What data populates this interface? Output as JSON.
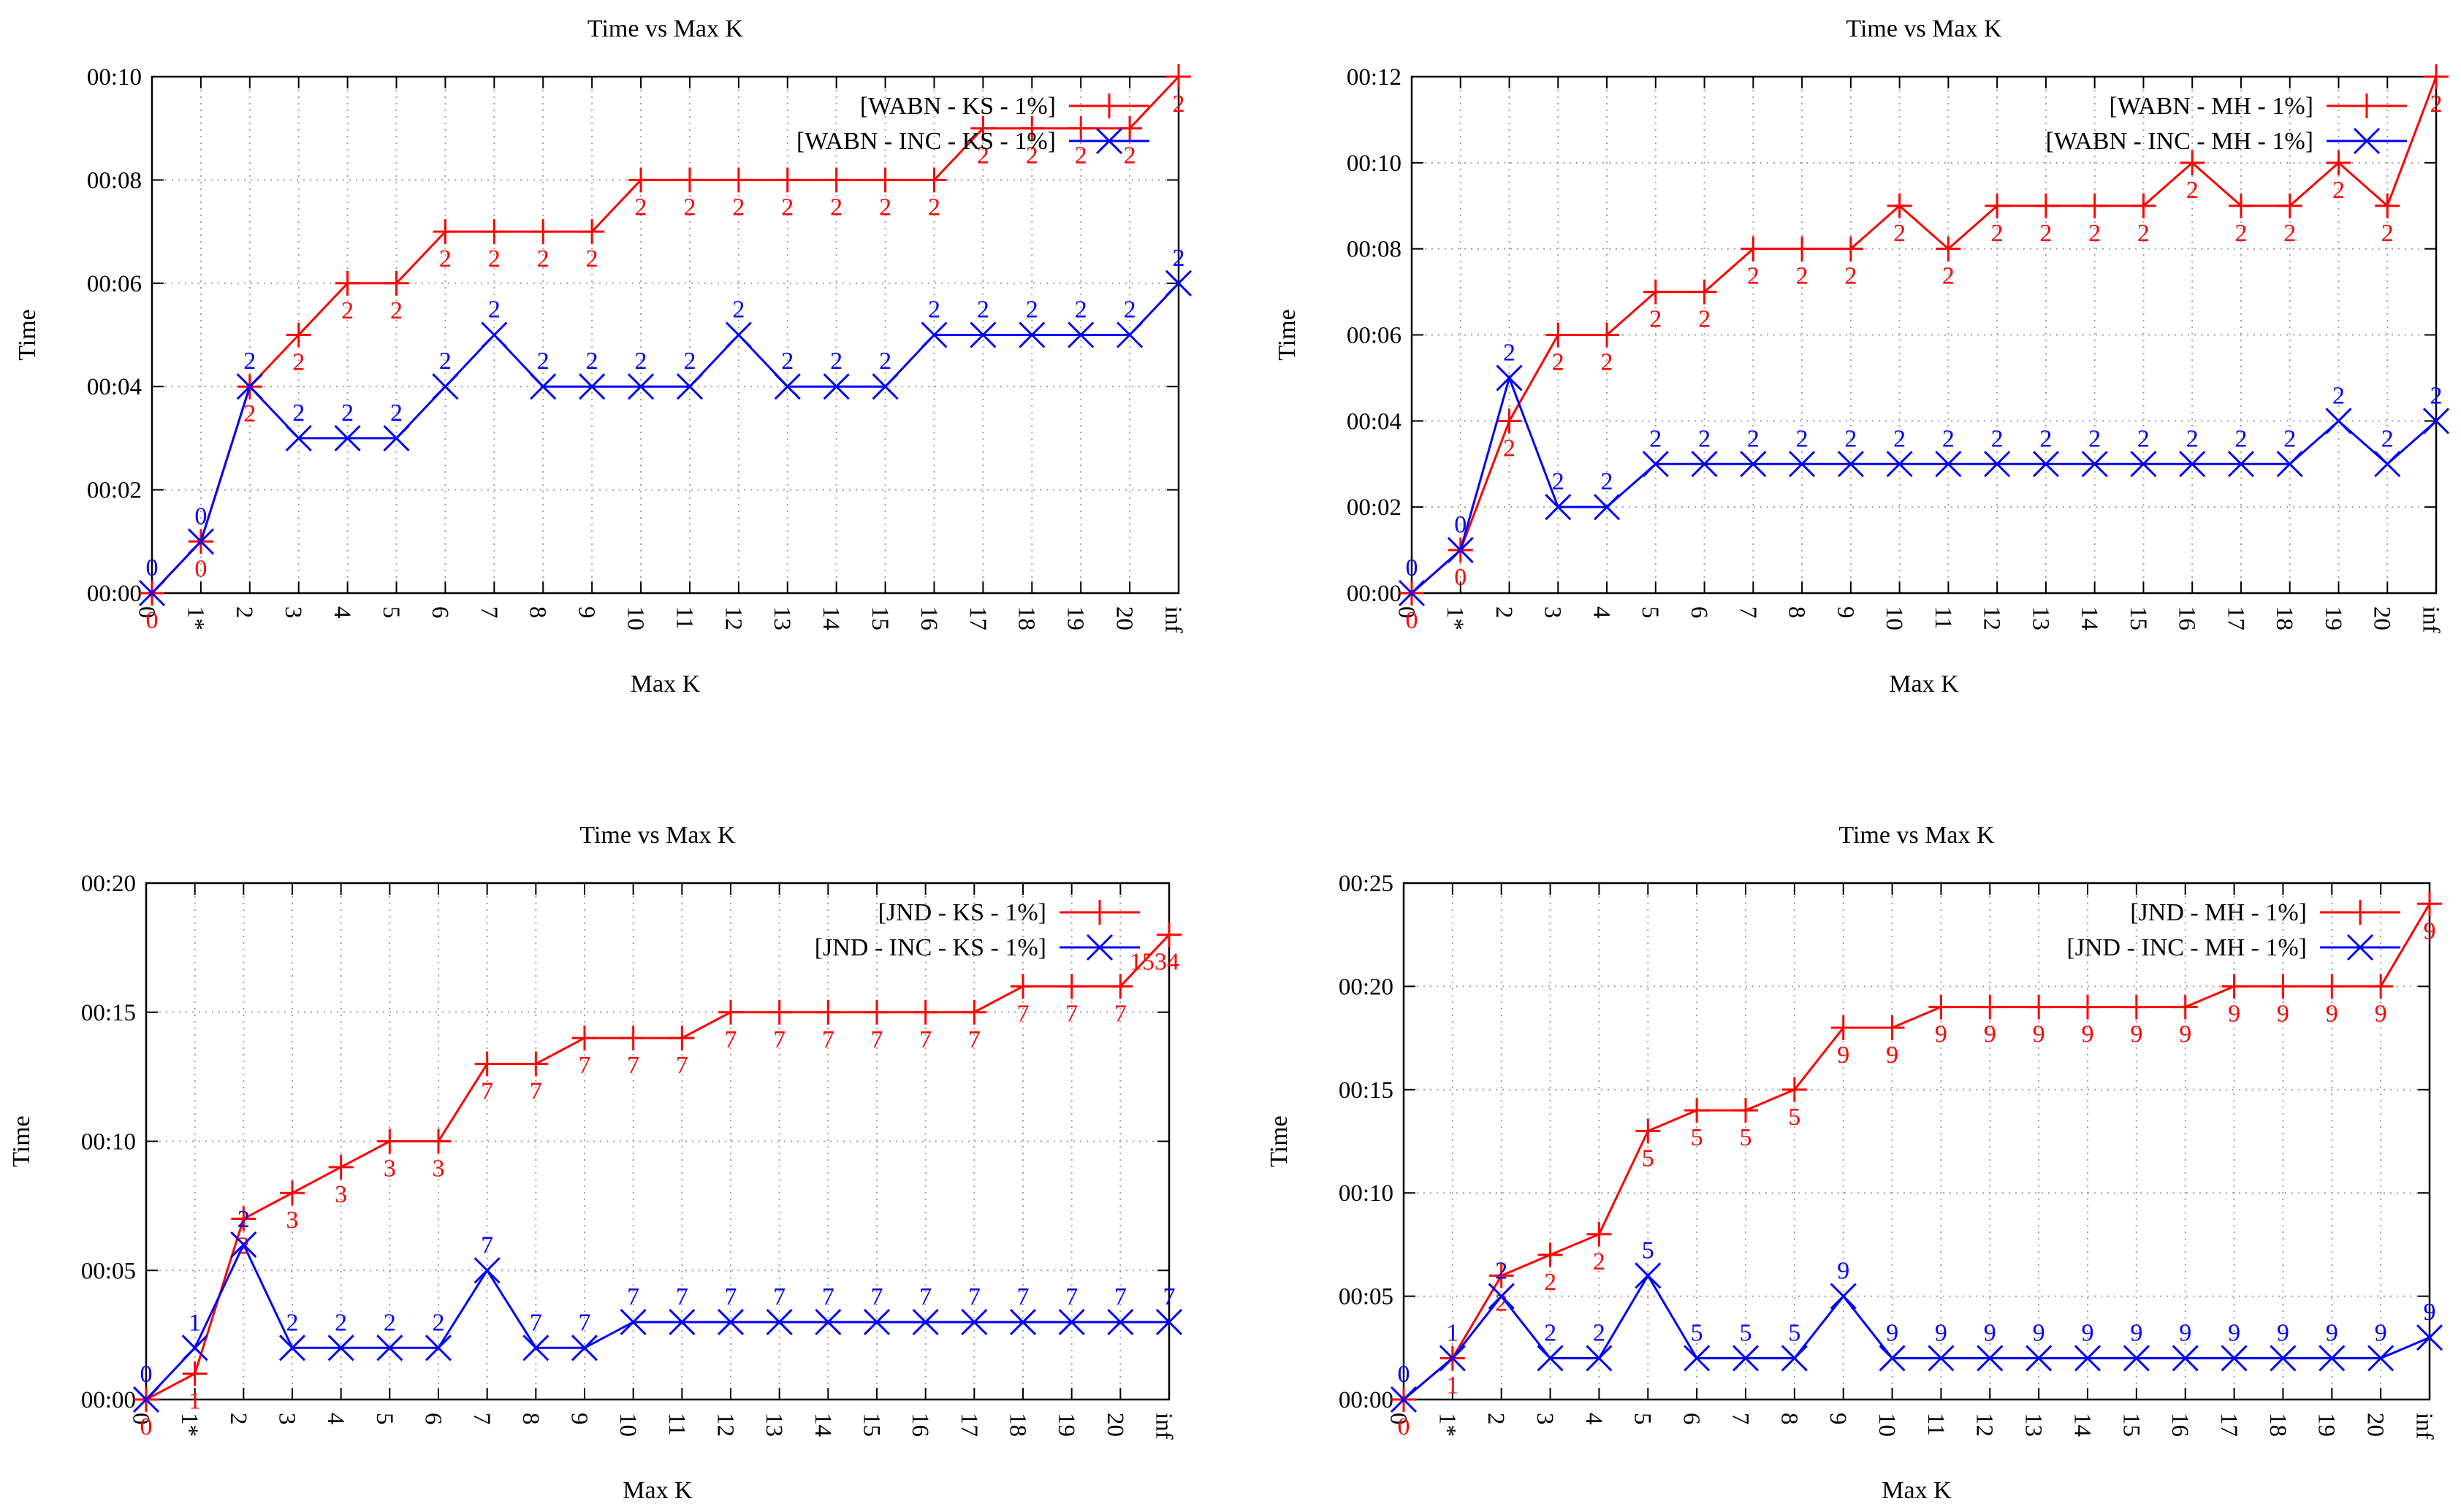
{
  "chart_data": [
    {
      "type": "line",
      "title": "Time vs Max K",
      "xlabel": "Max K",
      "ylabel": "Time",
      "categories": [
        "0",
        "1*",
        "2",
        "3",
        "4",
        "5",
        "6",
        "7",
        "8",
        "9",
        "10",
        "11",
        "12",
        "13",
        "14",
        "15",
        "16",
        "17",
        "18",
        "19",
        "20",
        "inf"
      ],
      "ylim": [
        0,
        10
      ],
      "yticks": [
        "00:00",
        "00:02",
        "00:04",
        "00:06",
        "00:08",
        "00:10"
      ],
      "legend_position": "top-right",
      "series": [
        {
          "name": "[WABN - KS - 1%]",
          "color": "#ff0000",
          "marker": "plus",
          "label_pos": "below",
          "values": [
            0,
            1,
            4,
            5,
            6,
            6,
            7,
            7,
            7,
            7,
            8,
            8,
            8,
            8,
            8,
            8,
            8,
            9,
            9,
            9,
            9,
            10
          ],
          "labels": [
            "0",
            "0",
            "2",
            "2",
            "2",
            "2",
            "2",
            "2",
            "2",
            "2",
            "2",
            "2",
            "2",
            "2",
            "2",
            "2",
            "2",
            "2",
            "2",
            "2",
            "2",
            "2"
          ]
        },
        {
          "name": "[WABN - INC - KS - 1%]",
          "color": "#0000ff",
          "marker": "cross",
          "label_pos": "above",
          "values": [
            0,
            1,
            4,
            3,
            3,
            3,
            4,
            5,
            4,
            4,
            4,
            4,
            5,
            4,
            4,
            4,
            5,
            5,
            5,
            5,
            5,
            6
          ],
          "labels": [
            "0",
            "0",
            "2",
            "2",
            "2",
            "2",
            "2",
            "2",
            "2",
            "2",
            "2",
            "2",
            "2",
            "2",
            "2",
            "2",
            "2",
            "2",
            "2",
            "2",
            "2",
            "2"
          ]
        }
      ]
    },
    {
      "type": "line",
      "title": "Time vs Max K",
      "xlabel": "Max K",
      "ylabel": "Time",
      "categories": [
        "0",
        "1*",
        "2",
        "3",
        "4",
        "5",
        "6",
        "7",
        "8",
        "9",
        "10",
        "11",
        "12",
        "13",
        "14",
        "15",
        "16",
        "17",
        "18",
        "19",
        "20",
        "inf"
      ],
      "ylim": [
        0,
        12
      ],
      "yticks": [
        "00:00",
        "00:02",
        "00:04",
        "00:06",
        "00:08",
        "00:10",
        "00:12"
      ],
      "legend_position": "top-right",
      "series": [
        {
          "name": "[WABN - MH - 1%]",
          "color": "#ff0000",
          "marker": "plus",
          "label_pos": "below",
          "values": [
            0,
            1,
            4,
            6,
            6,
            7,
            7,
            8,
            8,
            8,
            9,
            8,
            9,
            9,
            9,
            9,
            10,
            9,
            9,
            10,
            9,
            12
          ],
          "labels": [
            "0",
            "0",
            "2",
            "2",
            "2",
            "2",
            "2",
            "2",
            "2",
            "2",
            "2",
            "2",
            "2",
            "2",
            "2",
            "2",
            "2",
            "2",
            "2",
            "2",
            "2",
            "2"
          ]
        },
        {
          "name": "[WABN - INC - MH - 1%]",
          "color": "#0000ff",
          "marker": "cross",
          "label_pos": "above",
          "values": [
            0,
            1,
            5,
            2,
            2,
            3,
            3,
            3,
            3,
            3,
            3,
            3,
            3,
            3,
            3,
            3,
            3,
            3,
            3,
            4,
            3,
            4
          ],
          "labels": [
            "0",
            "0",
            "2",
            "2",
            "2",
            "2",
            "2",
            "2",
            "2",
            "2",
            "2",
            "2",
            "2",
            "2",
            "2",
            "2",
            "2",
            "2",
            "2",
            "2",
            "2",
            "2"
          ]
        }
      ]
    },
    {
      "type": "line",
      "title": "Time vs Max K",
      "xlabel": "Max K",
      "ylabel": "Time",
      "categories": [
        "0",
        "1*",
        "2",
        "3",
        "4",
        "5",
        "6",
        "7",
        "8",
        "9",
        "10",
        "11",
        "12",
        "13",
        "14",
        "15",
        "16",
        "17",
        "18",
        "19",
        "20",
        "inf"
      ],
      "ylim": [
        0,
        20
      ],
      "yticks": [
        "00:00",
        "00:05",
        "00:10",
        "00:15",
        "00:20"
      ],
      "legend_position": "top-right",
      "series": [
        {
          "name": "[JND - KS - 1%]",
          "color": "#ff0000",
          "marker": "plus",
          "label_pos": "below",
          "values": [
            0,
            1,
            7,
            8,
            9,
            10,
            10,
            13,
            13,
            14,
            14,
            14,
            15,
            15,
            15,
            15,
            15,
            15,
            16,
            16,
            16,
            18
          ],
          "labels": [
            "0",
            "1",
            "2",
            "3",
            "3",
            "3",
            "3",
            "7",
            "7",
            "7",
            "7",
            "7",
            "7",
            "7",
            "7",
            "7",
            "7",
            "7",
            "7",
            "7",
            "7",
            "1534"
          ]
        },
        {
          "name": "[JND - INC - KS - 1%]",
          "color": "#0000ff",
          "marker": "cross",
          "label_pos": "above",
          "values": [
            0,
            2,
            6,
            2,
            2,
            2,
            2,
            5,
            2,
            2,
            3,
            3,
            3,
            3,
            3,
            3,
            3,
            3,
            3,
            3,
            3,
            3
          ],
          "labels": [
            "0",
            "1",
            "2",
            "2",
            "2",
            "2",
            "2",
            "7",
            "7",
            "7",
            "7",
            "7",
            "7",
            "7",
            "7",
            "7",
            "7",
            "7",
            "7",
            "7",
            "7",
            "7"
          ]
        }
      ]
    },
    {
      "type": "line",
      "title": "Time vs Max K",
      "xlabel": "Max K",
      "ylabel": "Time",
      "categories": [
        "0",
        "1*",
        "2",
        "3",
        "4",
        "5",
        "6",
        "7",
        "8",
        "9",
        "10",
        "11",
        "12",
        "13",
        "14",
        "15",
        "16",
        "17",
        "18",
        "19",
        "20",
        "inf"
      ],
      "ylim": [
        0,
        25
      ],
      "yticks": [
        "00:00",
        "00:05",
        "00:10",
        "00:15",
        "00:20",
        "00:25"
      ],
      "legend_position": "top-right",
      "series": [
        {
          "name": "[JND - MH - 1%]",
          "color": "#ff0000",
          "marker": "plus",
          "label_pos": "below",
          "values": [
            0,
            2,
            6,
            7,
            8,
            13,
            14,
            14,
            15,
            18,
            18,
            19,
            19,
            19,
            19,
            19,
            19,
            20,
            20,
            20,
            20,
            24
          ],
          "labels": [
            "0",
            "1",
            "2",
            "2",
            "2",
            "5",
            "5",
            "5",
            "5",
            "9",
            "9",
            "9",
            "9",
            "9",
            "9",
            "9",
            "9",
            "9",
            "9",
            "9",
            "9",
            "9"
          ]
        },
        {
          "name": "[JND - INC - MH - 1%]",
          "color": "#0000ff",
          "marker": "cross",
          "label_pos": "above",
          "values": [
            0,
            2,
            5,
            2,
            2,
            6,
            2,
            2,
            2,
            5,
            2,
            2,
            2,
            2,
            2,
            2,
            2,
            2,
            2,
            2,
            2,
            3
          ],
          "labels": [
            "0",
            "1",
            "2",
            "2",
            "2",
            "5",
            "5",
            "5",
            "5",
            "9",
            "9",
            "9",
            "9",
            "9",
            "9",
            "9",
            "9",
            "9",
            "9",
            "9",
            "9",
            "9"
          ]
        }
      ]
    }
  ]
}
